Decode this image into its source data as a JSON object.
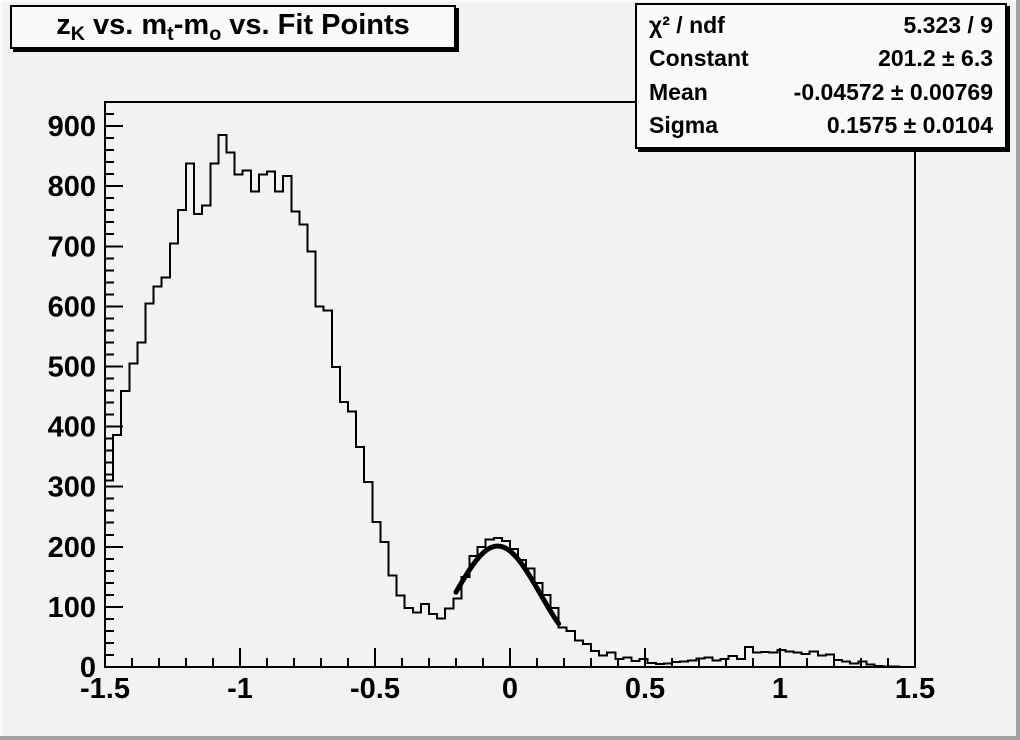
{
  "title": {
    "parts": [
      {
        "text": "z"
      },
      {
        "text": "K",
        "sub": true
      },
      {
        "text": " vs. m"
      },
      {
        "text": "t",
        "sub": true
      },
      {
        "text": "-m"
      },
      {
        "text": "o",
        "sub": true
      },
      {
        "text": " vs. Fit Points"
      }
    ]
  },
  "stats": {
    "rows": [
      {
        "label": "χ² / ndf",
        "value": "5.323 / 9"
      },
      {
        "label": "Constant",
        "value": "201.2 ± 6.3"
      },
      {
        "label": "Mean",
        "value": "-0.04572 ± 0.00769"
      },
      {
        "label": "Sigma",
        "value": "0.1575 ± 0.0104"
      }
    ]
  },
  "chart_data": {
    "type": "histogram",
    "title": "z_K vs. m_t-m_o vs. Fit Points",
    "x_start": -1.5,
    "bin_width": 0.03,
    "values": [
      310,
      386,
      459,
      505,
      540,
      605,
      633,
      648,
      705,
      760,
      838,
      754,
      768,
      838,
      885,
      856,
      819,
      826,
      791,
      819,
      824,
      791,
      817,
      758,
      736,
      691,
      600,
      593,
      499,
      441,
      425,
      366,
      308,
      241,
      208,
      152,
      119,
      98,
      91,
      105,
      88,
      81,
      97,
      114,
      150,
      185,
      200,
      212,
      215,
      210,
      196,
      178,
      164,
      140,
      120,
      98,
      66,
      60,
      44,
      38,
      27,
      19,
      24,
      13,
      16,
      10,
      13,
      7,
      5,
      6,
      8,
      9,
      11,
      14,
      16,
      11,
      13,
      18,
      13,
      33,
      24,
      25,
      24,
      28,
      26,
      24,
      22,
      26,
      19,
      21,
      12,
      9,
      6,
      9,
      4,
      2,
      1,
      1,
      0,
      0
    ],
    "x_axis": {
      "min": -1.5,
      "max": 1.5,
      "major_step": 0.5,
      "minor_step": 0.1,
      "labels": [
        "-1.5",
        "-1",
        "-0.5",
        "0",
        "0.5",
        "1",
        "1.5"
      ]
    },
    "y_axis": {
      "min": 0,
      "max": 940,
      "major_step": 100,
      "minor_step": 20,
      "labels": [
        "0",
        "100",
        "200",
        "300",
        "400",
        "500",
        "600",
        "700",
        "800",
        "900"
      ]
    },
    "fit": {
      "type": "gaussian",
      "constant": 201.2,
      "mean": -0.04572,
      "sigma": 0.1575,
      "draw_range": [
        -0.2,
        0.18
      ]
    },
    "grid": false,
    "line_color": "#000000",
    "fit_color": "#000000",
    "frame_color": "#000000",
    "text_color": "#000000"
  }
}
